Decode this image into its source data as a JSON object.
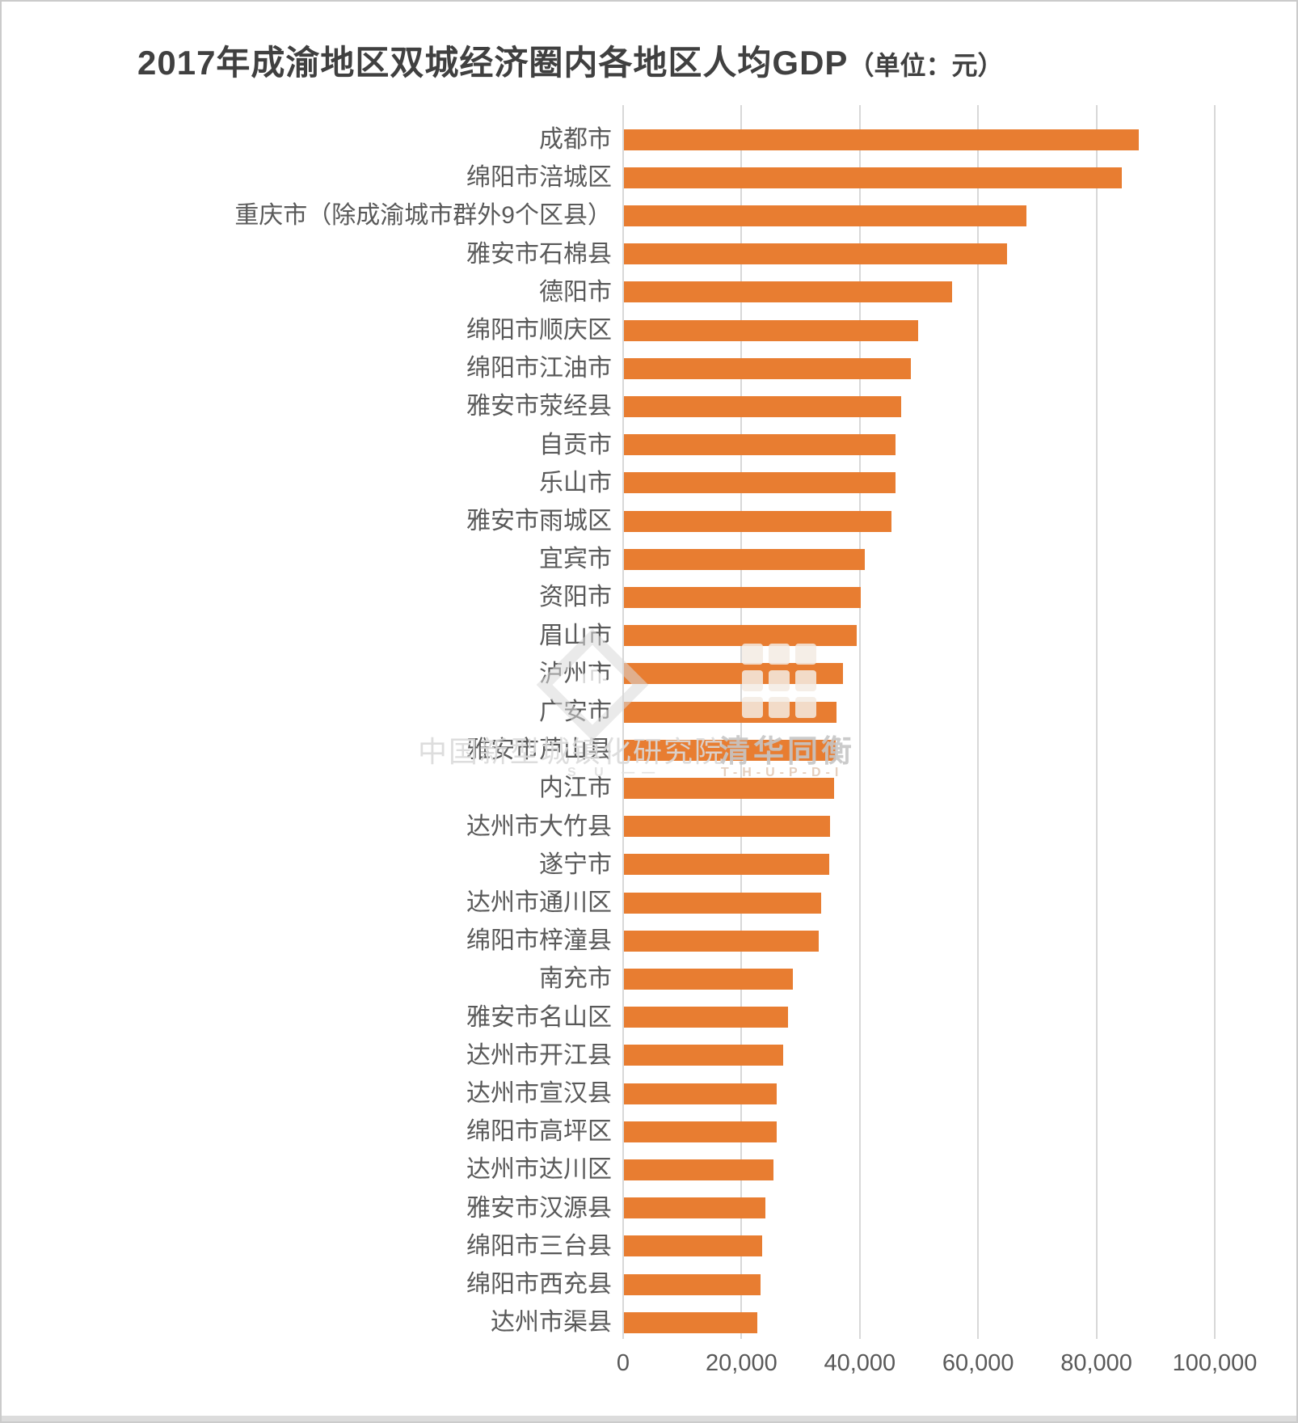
{
  "title": {
    "main": "2017年成渝地区双城经济圈内各地区人均GDP",
    "unit": "（单位：元）"
  },
  "watermark": {
    "line1_left": "中国新型城镇化研究院",
    "line1_right": "清华同衡",
    "line2_left": "S U ——",
    "line2_right": "T-H-U-P-D-I"
  },
  "axis": {
    "tick_labels": [
      "0",
      "20,000",
      "40,000",
      "60,000",
      "80,000",
      "100,000"
    ]
  },
  "colors": {
    "bar": "#E87D31",
    "gridline": "#D8D8D8",
    "label": "#595959",
    "title": "#404040"
  },
  "chart_data": {
    "type": "bar",
    "orientation": "horizontal",
    "title": "2017年成渝地区双城经济圈内各地区人均GDP（单位：元）",
    "xlim": [
      0,
      100000
    ],
    "x_ticks": [
      0,
      20000,
      40000,
      60000,
      80000,
      100000
    ],
    "grid": true,
    "legend": false,
    "categories": [
      "成都市",
      "绵阳市涪城区",
      "重庆市（除成渝城市群外9个区县）",
      "雅安市石棉县",
      "德阳市",
      "绵阳市顺庆区",
      "绵阳市江油市",
      "雅安市荥经县",
      "自贡市",
      "乐山市",
      "雅安市雨城区",
      "宜宾市",
      "资阳市",
      "眉山市",
      "泸州市",
      "广安市",
      "雅安市芦山县",
      "内江市",
      "达州市大竹县",
      "遂宁市",
      "达州市通川区",
      "绵阳市梓潼县",
      "南充市",
      "雅安市名山区",
      "达州市开江县",
      "达州市宣汉县",
      "绵阳市高坪区",
      "达州市达川区",
      "雅安市汉源县",
      "绵阳市三台县",
      "绵阳市西充县",
      "达州市渠县"
    ],
    "values": [
      87100,
      84300,
      68200,
      64900,
      55600,
      49900,
      48600,
      47000,
      46100,
      46000,
      45300,
      40900,
      40100,
      39500,
      37100,
      36000,
      35900,
      35600,
      35000,
      34900,
      33500,
      33000,
      28700,
      27900,
      27000,
      26000,
      25900,
      25400,
      24000,
      23500,
      23200,
      22700
    ]
  },
  "layout_note": "horizontal bar chart, bars orange, light gray vertical gridlines"
}
